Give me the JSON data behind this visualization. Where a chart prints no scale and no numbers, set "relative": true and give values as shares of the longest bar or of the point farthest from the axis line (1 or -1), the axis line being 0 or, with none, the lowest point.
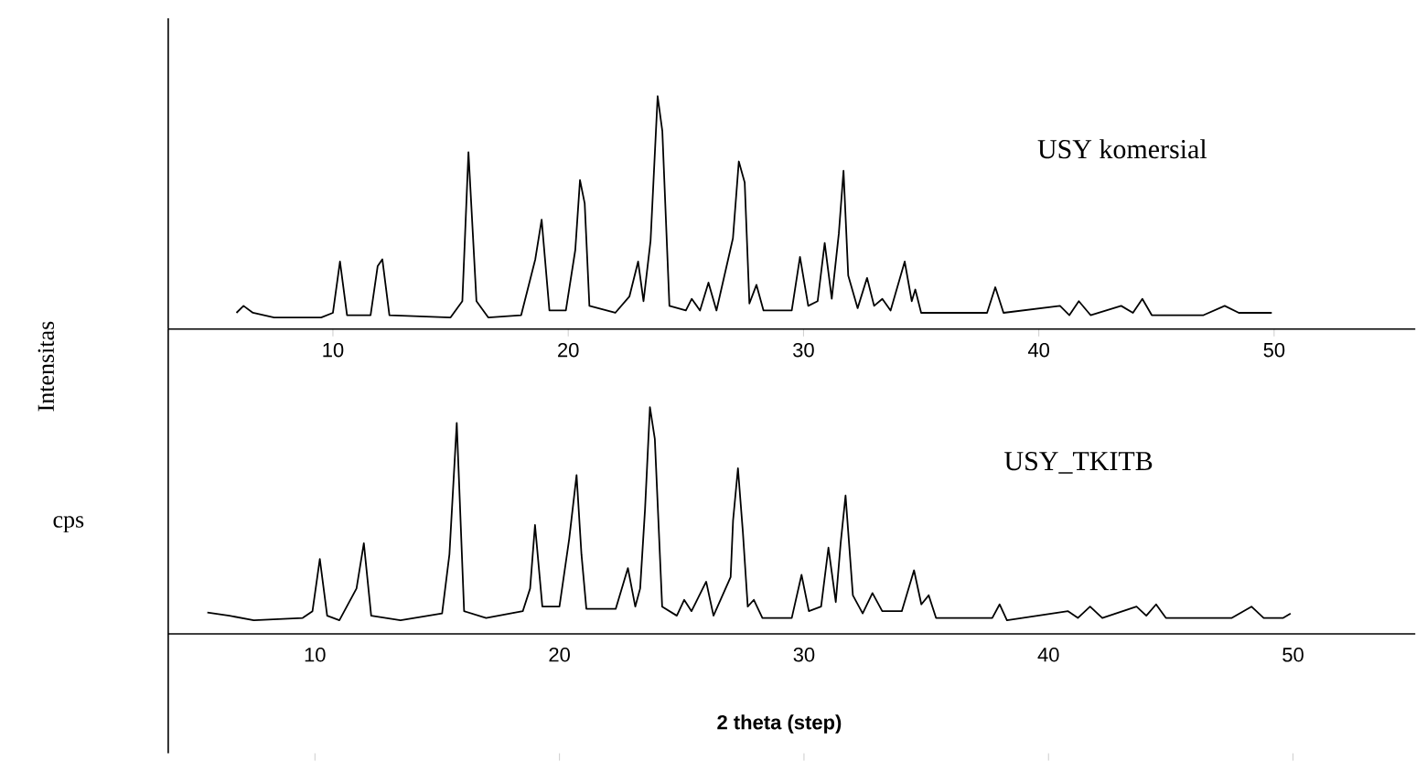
{
  "chart_data": [
    {
      "type": "line",
      "relative": true,
      "ylabel": "Intensitas",
      "xlim": [
        3,
        56
      ],
      "xticks": [
        10,
        20,
        30,
        40,
        50
      ],
      "x": [
        5.9,
        6.2,
        6.6,
        7.5,
        9.5,
        10.0,
        10.3,
        10.6,
        11.6,
        11.9,
        12.1,
        12.4,
        15.0,
        15.5,
        15.76,
        16.1,
        16.6,
        18.0,
        18.6,
        18.87,
        19.2,
        19.9,
        20.3,
        20.5,
        20.7,
        20.9,
        22.0,
        22.6,
        22.97,
        23.2,
        23.5,
        23.8,
        24.0,
        24.3,
        25.0,
        25.25,
        25.6,
        25.96,
        26.3,
        27.0,
        27.25,
        27.5,
        27.7,
        28.0,
        28.3,
        29.5,
        29.85,
        30.2,
        30.6,
        30.9,
        31.2,
        31.5,
        31.7,
        31.9,
        32.3,
        32.7,
        33.0,
        33.35,
        33.7,
        34.3,
        34.6,
        34.75,
        35.0,
        37.8,
        38.15,
        38.5,
        40.9,
        41.3,
        41.7,
        42.2,
        43.5,
        44.0,
        44.4,
        44.8,
        47.0,
        47.9,
        48.5,
        49.9
      ],
      "series": [
        {
          "name": "USY komersial",
          "color": "#000000",
          "values": [
            0.07,
            0.1,
            0.07,
            0.05,
            0.05,
            0.07,
            0.29,
            0.06,
            0.06,
            0.27,
            0.3,
            0.06,
            0.05,
            0.12,
            0.76,
            0.12,
            0.05,
            0.06,
            0.3,
            0.47,
            0.08,
            0.08,
            0.34,
            0.64,
            0.54,
            0.1,
            0.07,
            0.14,
            0.29,
            0.12,
            0.38,
            1.0,
            0.85,
            0.1,
            0.08,
            0.13,
            0.08,
            0.2,
            0.08,
            0.39,
            0.72,
            0.63,
            0.11,
            0.19,
            0.08,
            0.08,
            0.31,
            0.1,
            0.12,
            0.37,
            0.13,
            0.41,
            0.68,
            0.23,
            0.09,
            0.22,
            0.1,
            0.13,
            0.08,
            0.29,
            0.12,
            0.17,
            0.07,
            0.07,
            0.18,
            0.07,
            0.1,
            0.06,
            0.12,
            0.06,
            0.1,
            0.07,
            0.13,
            0.06,
            0.06,
            0.1,
            0.07,
            0.07
          ]
        }
      ]
    },
    {
      "type": "line",
      "relative": true,
      "ylabel": "cps",
      "xlabel": "**2 theta (step)**",
      "xlim": [
        4,
        55
      ],
      "xticks": [
        10,
        20,
        30,
        40,
        50
      ],
      "x": [
        5.6,
        6.5,
        7.5,
        9.5,
        9.9,
        10.2,
        10.5,
        11.0,
        11.7,
        12.0,
        12.3,
        13.5,
        15.2,
        15.5,
        15.8,
        16.1,
        17.0,
        18.5,
        18.8,
        19.0,
        19.3,
        20.0,
        20.4,
        20.7,
        20.9,
        21.1,
        22.3,
        22.8,
        23.1,
        23.3,
        23.5,
        23.7,
        23.9,
        24.2,
        24.8,
        25.1,
        25.4,
        26.0,
        26.3,
        27.0,
        27.1,
        27.3,
        27.5,
        27.7,
        27.95,
        28.3,
        29.5,
        29.9,
        30.2,
        30.7,
        31.0,
        31.3,
        31.5,
        31.7,
        32.0,
        32.4,
        32.8,
        33.2,
        34.0,
        34.5,
        34.8,
        35.1,
        35.4,
        37.7,
        38.0,
        38.3,
        40.8,
        41.2,
        41.7,
        42.2,
        43.6,
        44.0,
        44.4,
        44.8,
        47.5,
        48.3,
        48.8,
        49.6,
        49.9
      ],
      "series": [
        {
          "name": "USY_TKITB",
          "color": "#000000",
          "values": [
            0.094,
            0.08,
            0.06,
            0.07,
            0.1,
            0.33,
            0.08,
            0.06,
            0.2,
            0.4,
            0.08,
            0.06,
            0.09,
            0.35,
            0.93,
            0.1,
            0.07,
            0.1,
            0.2,
            0.48,
            0.12,
            0.12,
            0.42,
            0.7,
            0.35,
            0.11,
            0.11,
            0.29,
            0.12,
            0.2,
            0.55,
            1.0,
            0.86,
            0.12,
            0.08,
            0.15,
            0.1,
            0.23,
            0.08,
            0.25,
            0.5,
            0.73,
            0.45,
            0.12,
            0.15,
            0.07,
            0.07,
            0.26,
            0.1,
            0.12,
            0.38,
            0.14,
            0.4,
            0.61,
            0.17,
            0.09,
            0.18,
            0.1,
            0.1,
            0.28,
            0.13,
            0.17,
            0.07,
            0.07,
            0.13,
            0.06,
            0.1,
            0.07,
            0.12,
            0.07,
            0.12,
            0.08,
            0.13,
            0.07,
            0.07,
            0.12,
            0.07,
            0.07,
            0.09
          ]
        }
      ]
    }
  ]
}
